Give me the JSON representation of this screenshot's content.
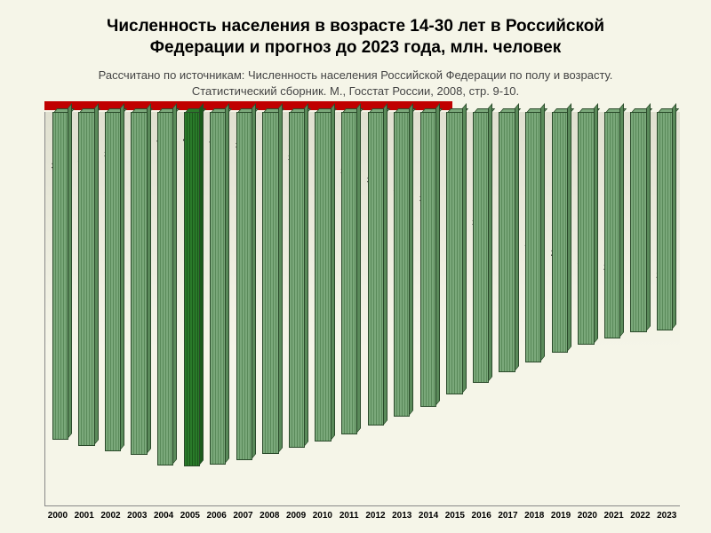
{
  "chart": {
    "type": "bar",
    "title_line1": "Численность населения в возрасте 14-30 лет в Российской",
    "title_line2": "Федерации и прогноз до 2023 года, млн. человек",
    "title_fontsize": 19,
    "subtitle_line1": "Рассчитано по источникам: Численность населения Российской Федерации по полу и возрасту.",
    "subtitle_line2": "Статистический сборник. М., Госстат России, 2008, стр. 9-10.",
    "subtitle_fontsize": 13,
    "categories": [
      "2000",
      "2001",
      "2002",
      "2003",
      "2004",
      "2005",
      "2006",
      "2007",
      "2008",
      "2009",
      "2010",
      "2011",
      "2012",
      "2013",
      "2014",
      "2015",
      "2016",
      "2017",
      "2018",
      "2019",
      "2020",
      "2021",
      "2022",
      "2023"
    ],
    "values": [
      37.5,
      38.2,
      38.8,
      39.2,
      40.4,
      40.5,
      40.3,
      39.8,
      39.1,
      38.4,
      37.7,
      36.9,
      35.9,
      34.8,
      33.7,
      32.3,
      31.0,
      29.8,
      28.6,
      27.5,
      26.6,
      25.9,
      25.2,
      25.0
    ],
    "value_labels": [
      "37,5",
      "38,2",
      "38,8",
      "39,2",
      "40,4",
      "40,5",
      "40,3",
      "39,8",
      "39,1",
      "38,4",
      "37,7",
      "36,9",
      "35,9",
      "34,8",
      "33,7",
      "32,3",
      "31,0",
      "29,8",
      "28,6",
      "27,5",
      "26,6",
      "25,9",
      "25,2",
      "25,0"
    ],
    "highlight_index": 5,
    "ymax": 45,
    "bar_color_light": "#7aa87a",
    "bar_color_dark": "#5a8a5a",
    "bar_border": "#2a4a2a",
    "highlight_color_light": "#2a7a2a",
    "highlight_color_dark": "#1a5a1a",
    "background_color": "#f5f5e8",
    "red_stripe_color": "#c00000",
    "red_stripe_width_pct": 62,
    "value_label_fontsize": 10,
    "xtick_fontsize": 10
  }
}
